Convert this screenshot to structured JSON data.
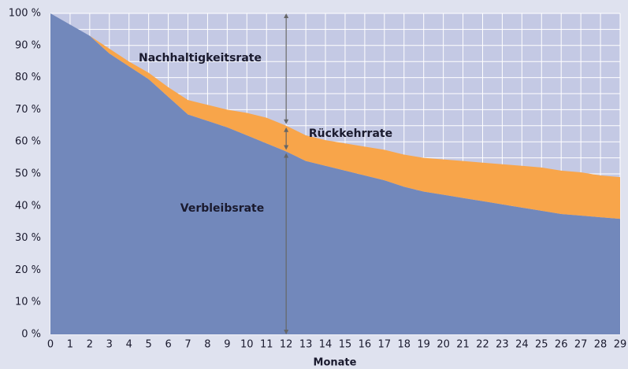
{
  "chart_data": {
    "type": "stacked_area",
    "x": [
      0,
      1,
      2,
      3,
      4,
      5,
      6,
      7,
      8,
      9,
      10,
      11,
      12,
      13,
      14,
      15,
      16,
      17,
      18,
      19,
      20,
      21,
      22,
      23,
      24,
      25,
      26,
      27,
      28,
      29
    ],
    "series": [
      {
        "name": "Verbleibsrate",
        "color": "#7288bb",
        "values": [
          100,
          96.5,
          93,
          87.5,
          83.5,
          79.5,
          74,
          68.5,
          66.5,
          64.5,
          62,
          59.5,
          57,
          54,
          52.5,
          51,
          49.5,
          48,
          46,
          44.5,
          43.5,
          42.5,
          41.5,
          40.5,
          39.5,
          38.5,
          37.5,
          37,
          36.5,
          36
        ]
      },
      {
        "name": "Rückkehrrate",
        "color": "#f8a54a",
        "values": [
          0,
          0,
          0,
          1.5,
          1.5,
          2,
          3,
          4.5,
          5,
          5.5,
          7,
          8,
          8,
          8,
          8,
          8.5,
          9,
          9.5,
          10,
          10.5,
          11,
          11.5,
          12,
          12.5,
          13,
          13.5,
          13.5,
          13.5,
          13,
          13
        ]
      }
    ],
    "annotation": "Nachhaltigkeitsrate",
    "xlabel": "Monate",
    "xlim": [
      0,
      29
    ],
    "xticks": [
      0,
      1,
      2,
      3,
      4,
      5,
      6,
      7,
      8,
      9,
      10,
      11,
      12,
      13,
      14,
      15,
      16,
      17,
      18,
      19,
      20,
      21,
      22,
      23,
      24,
      25,
      26,
      27,
      28,
      29
    ],
    "ylim": [
      0,
      100
    ],
    "yticks": [
      {
        "value": 0,
        "label": "0 %"
      },
      {
        "value": 10,
        "label": "10 %"
      },
      {
        "value": 20,
        "label": "20 %"
      },
      {
        "value": 30,
        "label": "30 %"
      },
      {
        "value": 40,
        "label": "40 %"
      },
      {
        "value": 50,
        "label": "50 %"
      },
      {
        "value": 60,
        "label": "60 %"
      },
      {
        "value": 70,
        "label": "70 %"
      },
      {
        "value": 80,
        "label": "80 %"
      },
      {
        "value": 90,
        "label": "90 %"
      },
      {
        "value": 100,
        "label": "100 %"
      }
    ],
    "grid": true,
    "background_color": "#c4c9e4"
  }
}
